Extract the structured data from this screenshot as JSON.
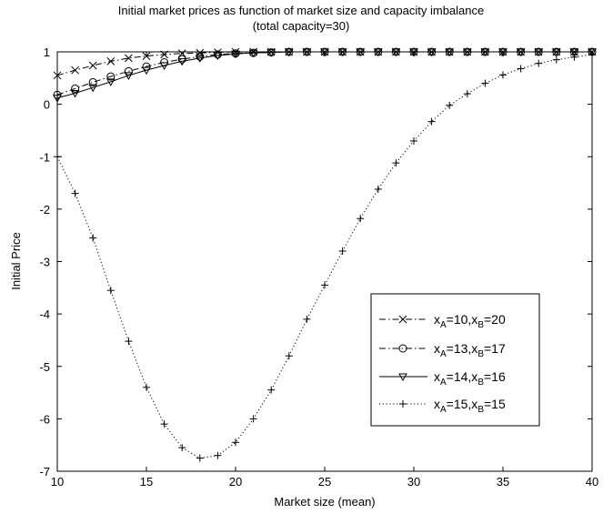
{
  "chart_data": {
    "type": "line",
    "title": "Initial market prices as function of market size and capacity imbalance",
    "subtitle": "(total capacity=30)",
    "xlabel": "Market size (mean)",
    "ylabel": "Initial Price",
    "xlim": [
      10,
      40
    ],
    "ylim": [
      -7,
      1
    ],
    "xticks": [
      10,
      15,
      20,
      25,
      30,
      35,
      40
    ],
    "yticks": [
      -7,
      -6,
      -5,
      -4,
      -3,
      -2,
      -1,
      0,
      1
    ],
    "grid": false,
    "legend_position": "lower-right",
    "x": [
      10,
      11,
      12,
      13,
      14,
      15,
      16,
      17,
      18,
      19,
      20,
      21,
      22,
      23,
      24,
      25,
      26,
      27,
      28,
      29,
      30,
      31,
      32,
      33,
      34,
      35,
      36,
      37,
      38,
      39,
      40
    ],
    "series": [
      {
        "name": "x_A=10,x_B=20",
        "label_parts": {
          "a_sub": "A",
          "a_val": "=10,x",
          "b_sub": "B",
          "b_val": "=20"
        },
        "marker": "x",
        "linestyle": "dashdot",
        "values": [
          0.55,
          0.65,
          0.74,
          0.82,
          0.88,
          0.92,
          0.95,
          0.97,
          0.98,
          0.99,
          1.0,
          1.0,
          1.0,
          1.0,
          1.0,
          1.0,
          1.0,
          1.0,
          1.0,
          1.0,
          1.0,
          1.0,
          1.0,
          1.0,
          1.0,
          1.0,
          1.0,
          1.0,
          1.0,
          1.0,
          1.0
        ]
      },
      {
        "name": "x_A=13,x_B=17",
        "label_parts": {
          "a_sub": "A",
          "a_val": "=13,x",
          "b_sub": "B",
          "b_val": "=17"
        },
        "marker": "o",
        "linestyle": "dashdot",
        "values": [
          0.18,
          0.3,
          0.42,
          0.53,
          0.63,
          0.72,
          0.8,
          0.86,
          0.91,
          0.95,
          0.97,
          0.98,
          0.99,
          1.0,
          1.0,
          1.0,
          1.0,
          1.0,
          1.0,
          1.0,
          1.0,
          1.0,
          1.0,
          1.0,
          1.0,
          1.0,
          1.0,
          1.0,
          1.0,
          1.0,
          1.0
        ]
      },
      {
        "name": "x_A=14,x_B=16",
        "label_parts": {
          "a_sub": "A",
          "a_val": "=14,x",
          "b_sub": "B",
          "b_val": "=16"
        },
        "marker": "v",
        "linestyle": "solid",
        "values": [
          0.12,
          0.21,
          0.32,
          0.43,
          0.55,
          0.65,
          0.74,
          0.82,
          0.88,
          0.93,
          0.96,
          0.98,
          0.99,
          1.0,
          1.0,
          1.0,
          1.0,
          1.0,
          1.0,
          1.0,
          1.0,
          1.0,
          1.0,
          1.0,
          1.0,
          1.0,
          1.0,
          1.0,
          1.0,
          1.0,
          1.0
        ]
      },
      {
        "name": "x_A=15,x_B=15",
        "label_parts": {
          "a_sub": "A",
          "a_val": "=15,x",
          "b_sub": "B",
          "b_val": "=15"
        },
        "marker": "+",
        "linestyle": "dotted",
        "values": [
          -1.0,
          -1.7,
          -2.55,
          -3.55,
          -4.52,
          -5.4,
          -6.1,
          -6.55,
          -6.75,
          -6.7,
          -6.45,
          -6.0,
          -5.45,
          -4.8,
          -4.1,
          -3.45,
          -2.8,
          -2.18,
          -1.62,
          -1.12,
          -0.7,
          -0.33,
          -0.02,
          0.2,
          0.4,
          0.56,
          0.68,
          0.78,
          0.85,
          0.9,
          0.95
        ]
      }
    ]
  }
}
